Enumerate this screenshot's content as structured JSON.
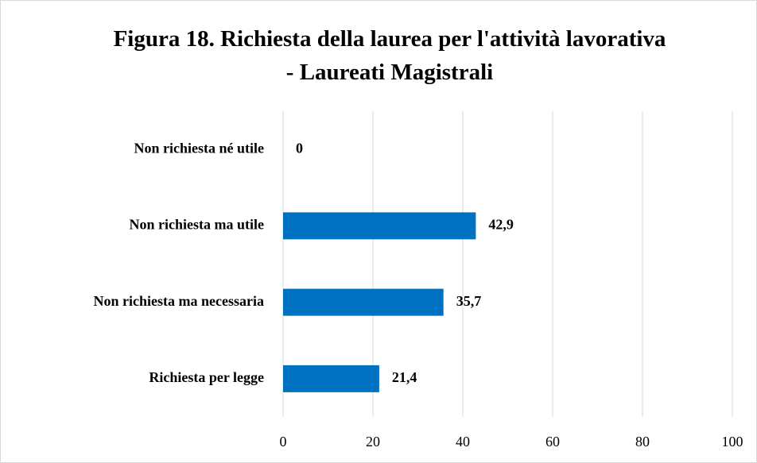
{
  "chart_data": {
    "type": "bar",
    "orientation": "horizontal",
    "title": "Figura 18. Richiesta della laurea per l'attività lavorativa - Laureati Magistrali",
    "categories": [
      "Non richiesta né utile",
      "Non richiesta ma utile",
      "Non richiesta ma necessaria",
      "Richiesta per legge"
    ],
    "values": [
      0,
      42.9,
      35.7,
      21.4
    ],
    "value_labels": [
      "0",
      "42,9",
      "35,7",
      "21,4"
    ],
    "color": "#0070c0",
    "xlim": [
      0,
      100
    ],
    "xticks": [
      0,
      20,
      40,
      60,
      80,
      100
    ],
    "grid": true
  }
}
